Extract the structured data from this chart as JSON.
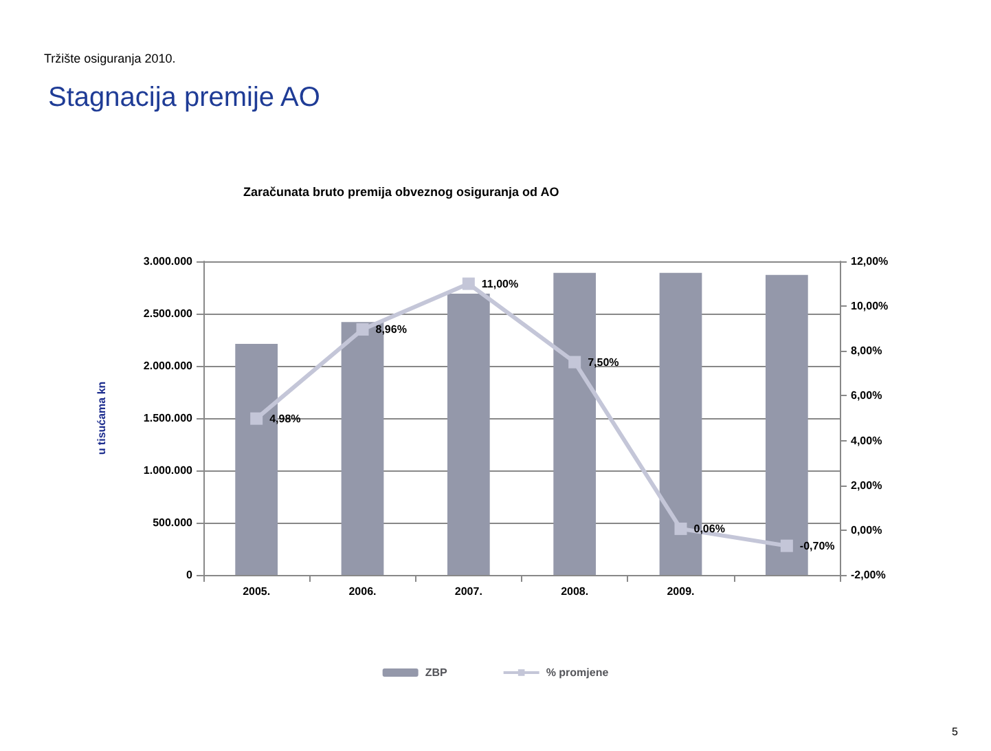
{
  "chart_data": {
    "type": "bar",
    "title": "Stagnacija premije AO",
    "subtitle": "Zaračunata bruto premija obveznog osiguranja od AO",
    "annotations": [
      "Tržište osiguranja 2010.",
      "5"
    ],
    "ylabel": "u tisućama kn",
    "categories": [
      "2005.",
      "2006.",
      "2007.",
      "2008.",
      "2009.",
      null
    ],
    "series": [
      {
        "name": "ZBP",
        "color": "#9498aa",
        "values": [
          2210000,
          2420000,
          2690000,
          2890000,
          2890000,
          2870000
        ]
      },
      {
        "name": "% promjene",
        "type": "line",
        "axis": "y2",
        "color": "#c4c6d8",
        "values": [
          4.98,
          8.96,
          11.0,
          7.5,
          0.06,
          -0.7
        ],
        "value_labels": [
          "4,98%",
          "8,96%",
          "11,00%",
          "7,50%",
          "0,06%",
          "-0,70%"
        ]
      }
    ],
    "ylim": [
      0,
      3000000
    ],
    "yticks": [
      {
        "value": 0,
        "label": "0"
      },
      {
        "value": 500000,
        "label": "500.000"
      },
      {
        "value": 1000000,
        "label": "1.000.000"
      },
      {
        "value": 1500000,
        "label": "1.500.000"
      },
      {
        "value": 2000000,
        "label": "2.000.000"
      },
      {
        "value": 2500000,
        "label": "2.500.000"
      },
      {
        "value": 3000000,
        "label": "3.000.000"
      }
    ],
    "y2lim": [
      -2,
      12
    ],
    "y2ticks": [
      {
        "value": -2,
        "label": "-2,00%"
      },
      {
        "value": 0,
        "label": "0,00%"
      },
      {
        "value": 2,
        "label": "2,00%"
      },
      {
        "value": 4,
        "label": "4,00%"
      },
      {
        "value": 6,
        "label": "6,00%"
      },
      {
        "value": 8,
        "label": "8,00%"
      },
      {
        "value": 10,
        "label": "10,00%"
      },
      {
        "value": 12,
        "label": "12,00%"
      }
    ],
    "grid": "y",
    "legend": "bottom",
    "marker": "square",
    "line_style": "solid"
  }
}
